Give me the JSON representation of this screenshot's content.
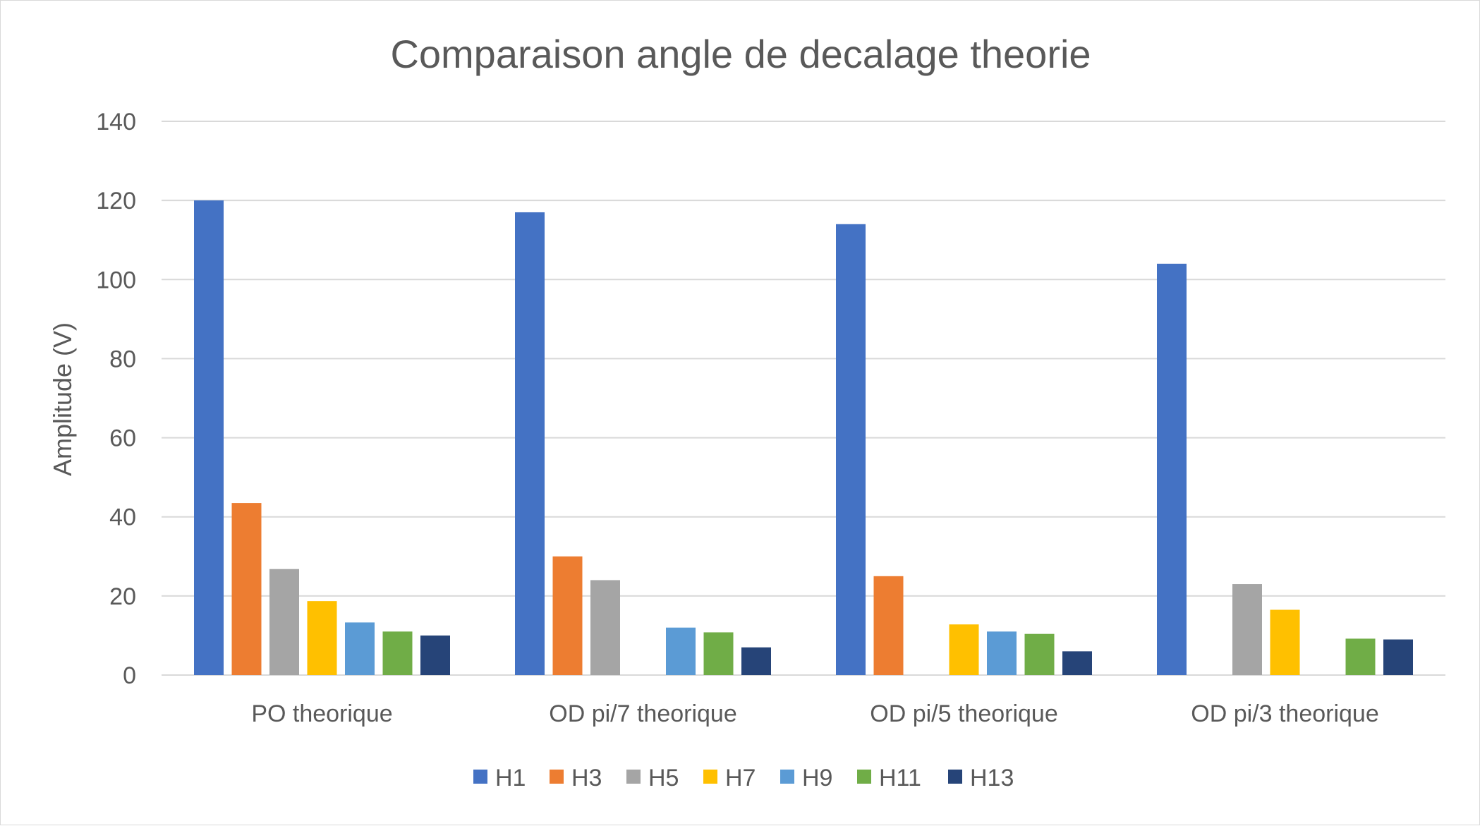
{
  "chart_data": {
    "type": "bar",
    "title": "Comparaison angle de decalage theorie",
    "xlabel": "",
    "ylabel": "Amplitude (V)",
    "ylim": [
      0,
      140
    ],
    "yticks": [
      0,
      20,
      40,
      60,
      80,
      100,
      120,
      140
    ],
    "grid": true,
    "legend_position": "bottom",
    "categories": [
      "PO theorique",
      "OD pi/7 theorique",
      "OD pi/5 theorique",
      "OD pi/3 theorique"
    ],
    "series": [
      {
        "name": "H1",
        "color": "#4472C4",
        "values": [
          120,
          117,
          114,
          104
        ]
      },
      {
        "name": "H3",
        "color": "#ED7D31",
        "values": [
          43.5,
          30,
          25,
          0
        ]
      },
      {
        "name": "H5",
        "color": "#A5A5A5",
        "values": [
          26.8,
          24,
          0,
          23
        ]
      },
      {
        "name": "H7",
        "color": "#FFC000",
        "values": [
          18.7,
          0,
          12.8,
          16.5
        ]
      },
      {
        "name": "H9",
        "color": "#5B9BD5",
        "values": [
          13.3,
          12,
          11,
          0
        ]
      },
      {
        "name": "H11",
        "color": "#70AD47",
        "values": [
          11,
          10.8,
          10.4,
          9.2
        ]
      },
      {
        "name": "H13",
        "color": "#264478",
        "values": [
          10,
          7,
          6,
          9
        ]
      }
    ]
  }
}
